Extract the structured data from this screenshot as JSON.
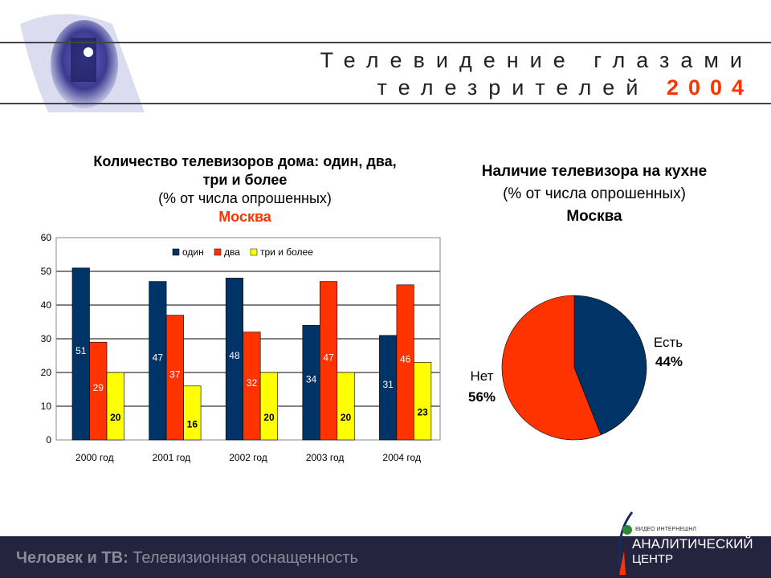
{
  "header": {
    "line1": "Телевидение глазами",
    "line2": "телезрителей",
    "year": "2004"
  },
  "bar_title": {
    "line1": "Количество телевизоров дома: один, два,",
    "line2": "три и более",
    "line3": "(% от числа опрошенных)",
    "city": "Москва"
  },
  "pie_title": {
    "line1": "Наличие телевизора на кухне",
    "line2": "(% от числа опрошенных)",
    "city": "Москва"
  },
  "chart_data": [
    {
      "type": "bar",
      "categories": [
        "2000 год",
        "2001 год",
        "2002 год",
        "2003 год",
        "2004 год"
      ],
      "series": [
        {
          "name": "один",
          "values": [
            51,
            47,
            48,
            34,
            31
          ],
          "color": "#003366"
        },
        {
          "name": "два",
          "values": [
            29,
            37,
            32,
            47,
            46
          ],
          "color": "#ff3300"
        },
        {
          "name": "три и более",
          "values": [
            20,
            16,
            20,
            20,
            23
          ],
          "color": "#ffff00"
        }
      ],
      "ylim": [
        0,
        60
      ],
      "yticks": [
        "0",
        "10",
        "20",
        "30",
        "40",
        "50",
        "60"
      ],
      "grid": true,
      "legend": "top"
    },
    {
      "type": "pie",
      "slices": [
        {
          "label": "Есть",
          "value": 44,
          "text": "44%",
          "color": "#003366"
        },
        {
          "label": "Нет",
          "value": 56,
          "text": "56%",
          "color": "#ff3300"
        }
      ]
    }
  ],
  "footer": {
    "bold": "Человек и ТВ:",
    "text": " Телевизионная оснащенность",
    "logo_small": "видео интернешнл",
    "logo_line1": "Аналитический",
    "logo_line2": "центр"
  }
}
